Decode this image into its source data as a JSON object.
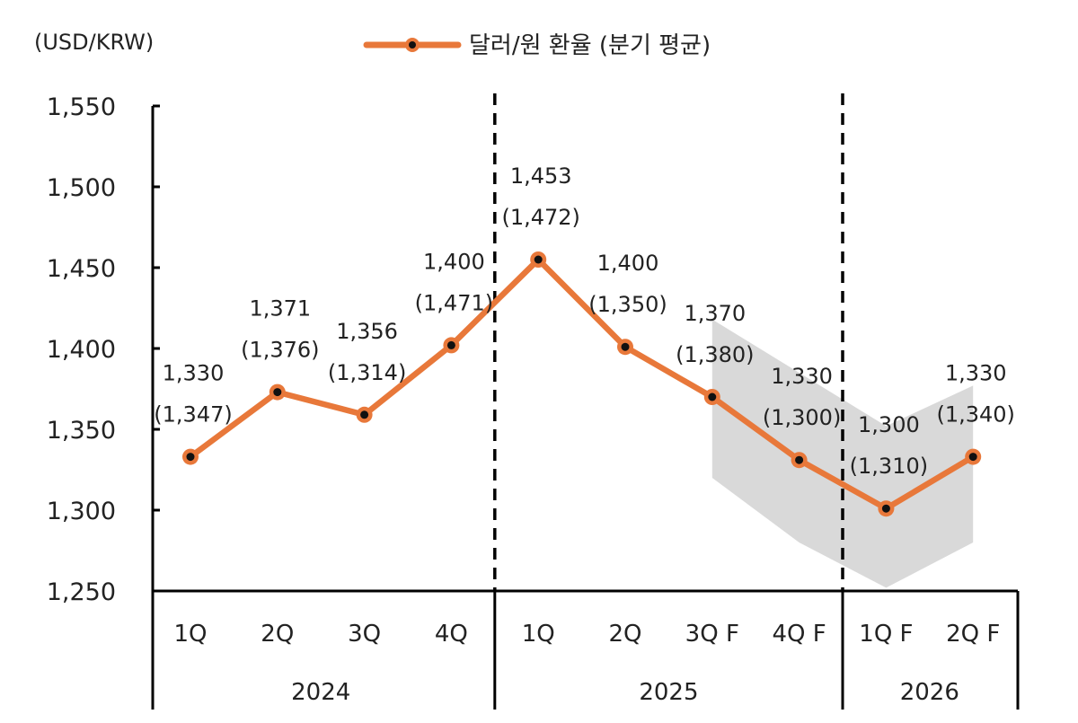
{
  "chart_data": {
    "type": "line",
    "unit_label": "(USD/KRW)",
    "legend": "달러/원 환율 (분기 평균)",
    "series_color": "#E8783A",
    "band_color": "#D9D9D9",
    "ylim": [
      1250,
      1550
    ],
    "yticks": [
      "1,250",
      "1,300",
      "1,350",
      "1,400",
      "1,450",
      "1,500",
      "1,550"
    ],
    "ytick_values": [
      1250,
      1300,
      1350,
      1400,
      1450,
      1500,
      1550
    ],
    "categories": [
      "1Q",
      "2Q",
      "3Q",
      "4Q",
      "1Q",
      "2Q",
      "3Q F",
      "4Q F",
      "1Q F",
      "2Q F"
    ],
    "years": [
      {
        "label": "2024",
        "start": 0,
        "end": 3
      },
      {
        "label": "2025",
        "start": 4,
        "end": 7
      },
      {
        "label": "2026",
        "start": 8,
        "end": 9
      }
    ],
    "series": [
      {
        "values": [
          1333,
          1373,
          1359,
          1402,
          1455,
          1401,
          1370,
          1331,
          1301,
          1333
        ]
      }
    ],
    "labels": [
      [
        "1,330",
        "(1,347)"
      ],
      [
        "1,371",
        "(1,376)"
      ],
      [
        "1,356",
        "(1,314)"
      ],
      [
        "1,400",
        "(1,471)"
      ],
      [
        "1,453",
        "(1,472)"
      ],
      [
        "1,400",
        "(1,350)"
      ],
      [
        "1,370",
        "(1,380)"
      ],
      [
        "1,330",
        "(1,300)"
      ],
      [
        "1,300",
        "(1,310)"
      ],
      [
        "1,330",
        "(1,340)"
      ]
    ],
    "forecast_band": {
      "indices": [
        6,
        7,
        8,
        9
      ],
      "upper": [
        1418,
        1385,
        1352,
        1377
      ],
      "lower": [
        1320,
        1280,
        1252,
        1280
      ]
    },
    "dividers_after": [
      3,
      7
    ]
  }
}
